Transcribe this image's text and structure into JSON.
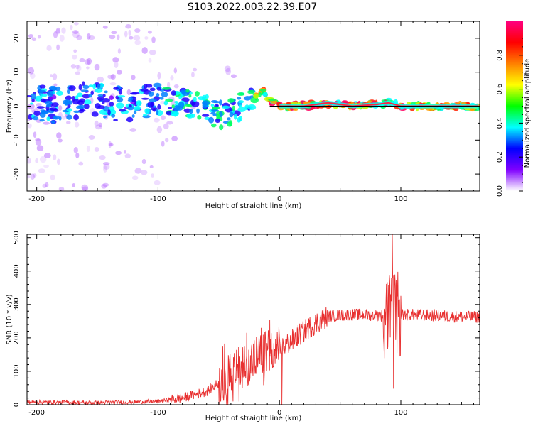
{
  "title": "S103.2022.003.22.39.E07",
  "chart_data": [
    {
      "type": "heatmap",
      "xlabel": "Height of straight line (km)",
      "ylabel": "Frequency (Hz)",
      "xlim": [
        -208,
        165
      ],
      "ylim": [
        -25,
        25
      ],
      "xticks": [
        -200,
        -100,
        0,
        100
      ],
      "yticks": [
        -20,
        -10,
        0,
        10,
        20
      ],
      "colorbar": {
        "label": "Normalized spectral amplitude",
        "range": [
          0,
          1
        ],
        "ticks": [
          "0.0",
          "0.2",
          "0.4",
          "0.6",
          "0.8"
        ],
        "colormap": [
          "#ffffff",
          "#8000ff",
          "#0000ff",
          "#00ffff",
          "#00ff00",
          "#ffff00",
          "#ff8000",
          "#ff0000",
          "#ff0080"
        ]
      },
      "ridge": {
        "x": [
          -200,
          -180,
          -160,
          -140,
          -120,
          -100,
          -85,
          -70,
          -55,
          -45,
          -35,
          -25,
          -18,
          -14,
          -10,
          -5,
          0,
          20,
          40,
          60,
          80,
          90,
          100,
          120,
          140,
          160
        ],
        "y": [
          1,
          0,
          2,
          1,
          0,
          2,
          1.5,
          0.5,
          -2,
          -3,
          -1,
          1,
          3,
          5,
          2,
          1,
          0,
          0,
          1,
          0,
          0.5,
          1,
          0,
          0,
          0,
          0
        ]
      },
      "reference_line": {
        "y": 0
      }
    },
    {
      "type": "line",
      "xlabel": "Height of straight line (km)",
      "ylabel": "SNR (10 * v/v)",
      "xlim": [
        -208,
        165
      ],
      "ylim": [
        0,
        510
      ],
      "xticks": [
        -200,
        -100,
        0,
        100
      ],
      "yticks": [
        0,
        100,
        200,
        300,
        400,
        500
      ],
      "color": "#e83030",
      "trend": {
        "x": [
          -208,
          -150,
          -100,
          -80,
          -60,
          -40,
          -30,
          -20,
          -10,
          0,
          10,
          20,
          30,
          40,
          60,
          80,
          90,
          100,
          120,
          140,
          165
        ],
        "y": [
          8,
          6,
          10,
          20,
          40,
          90,
          120,
          140,
          155,
          165,
          190,
          220,
          245,
          265,
          270,
          268,
          265,
          270,
          268,
          265,
          262
        ]
      },
      "spikes": [
        {
          "x": 93,
          "y": 510
        },
        {
          "x": 94,
          "y": 48
        },
        {
          "x": 91,
          "y": 360
        },
        {
          "x": 97,
          "y": 330
        },
        {
          "x": 2,
          "y": 0
        },
        {
          "x": -15,
          "y": 230
        },
        {
          "x": -27,
          "y": 215
        },
        {
          "x": -8,
          "y": 255
        }
      ]
    }
  ]
}
